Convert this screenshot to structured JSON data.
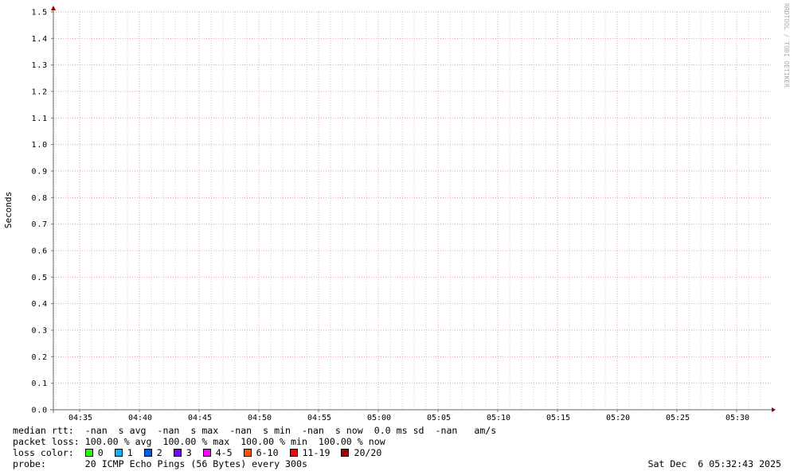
{
  "chart_data": {
    "type": "line",
    "title": "",
    "xlabel": "",
    "ylabel": "Seconds",
    "ylim": [
      0.0,
      1.5
    ],
    "y_ticks": [
      "0.0",
      "0.1",
      "0.2",
      "0.3",
      "0.4",
      "0.5",
      "0.6",
      "0.7",
      "0.8",
      "0.9",
      "1.0",
      "1.1",
      "1.2",
      "1.3",
      "1.4",
      "1.5"
    ],
    "x_ticks": [
      "04:35",
      "04:40",
      "04:45",
      "04:50",
      "04:55",
      "05:00",
      "05:05",
      "05:10",
      "05:15",
      "05:20",
      "05:25",
      "05:30"
    ],
    "grid": true,
    "series": [],
    "watermark": "RRDTOOL / TOBI OETIKER"
  },
  "legend": {
    "median_rtt": {
      "label": "median rtt:",
      "text": "-nan  s avg  -nan  s max  -nan  s min  -nan  s now  0.0 ms sd  -nan   am/s"
    },
    "packet_loss": {
      "label": "packet loss:",
      "text": "100.00 % avg  100.00 % max  100.00 % min  100.00 % now"
    },
    "loss_color": {
      "label": "loss color:",
      "items": [
        {
          "label": "0",
          "color": "#26ff00"
        },
        {
          "label": "1",
          "color": "#00b8ff"
        },
        {
          "label": "2",
          "color": "#0059ff"
        },
        {
          "label": "3",
          "color": "#7e00ff"
        },
        {
          "label": "4-5",
          "color": "#ff00ff"
        },
        {
          "label": "6-10",
          "color": "#ff5500"
        },
        {
          "label": "11-19",
          "color": "#ff0000"
        },
        {
          "label": "20/20",
          "color": "#a10000"
        }
      ]
    },
    "probe": {
      "label": "probe:",
      "text": "20 ICMP Echo Pings (56 Bytes) every 300s"
    }
  },
  "timestamp": "Sat Dec  6 05:32:43 2025"
}
